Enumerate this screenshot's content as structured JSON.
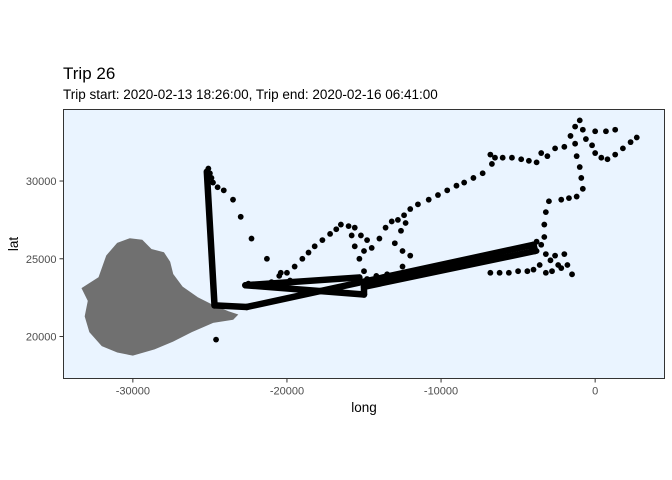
{
  "colors": {
    "panel_background": "#eaf4ff",
    "panel_border": "#333333",
    "points": "#000000",
    "land": "#707070"
  },
  "chart_data": {
    "type": "scatter",
    "title": "Trip 26",
    "subtitle": "Trip start: 2020-02-13 18:26:00, Trip end: 2020-02-16 06:41:00",
    "xlabel": "long",
    "ylabel": "lat",
    "xlim": [
      -34500,
      4500
    ],
    "ylim": [
      17300,
      34600
    ],
    "x_ticks": [
      -30000,
      -20000,
      -10000,
      0
    ],
    "x_tick_labels": [
      "-30000",
      "-20000",
      "-10000",
      "0"
    ],
    "y_ticks": [
      20000,
      25000,
      30000
    ],
    "y_tick_labels": [
      "20000",
      "25000",
      "30000"
    ],
    "grid": false,
    "legend": "none",
    "land_outline": [
      [
        -32200,
        23800
      ],
      [
        -31700,
        25200
      ],
      [
        -31000,
        26000
      ],
      [
        -30200,
        26300
      ],
      [
        -29400,
        26200
      ],
      [
        -28800,
        25600
      ],
      [
        -28000,
        25400
      ],
      [
        -27600,
        24800
      ],
      [
        -27400,
        24000
      ],
      [
        -26800,
        23200
      ],
      [
        -25800,
        22500
      ],
      [
        -24800,
        22000
      ],
      [
        -23800,
        21600
      ],
      [
        -23200,
        21400
      ],
      [
        -23500,
        21100
      ],
      [
        -24800,
        20900
      ],
      [
        -26200,
        20300
      ],
      [
        -27400,
        19700
      ],
      [
        -28600,
        19200
      ],
      [
        -30000,
        18800
      ],
      [
        -31000,
        19000
      ],
      [
        -32000,
        19400
      ],
      [
        -32800,
        20300
      ],
      [
        -33100,
        21300
      ],
      [
        -32900,
        22300
      ],
      [
        -33300,
        23100
      ]
    ],
    "series": [
      {
        "marker": "point",
        "points": [
          [
            -25100,
            30800
          ],
          [
            -25000,
            30500
          ],
          [
            -24900,
            30200
          ],
          [
            -24800,
            29900
          ],
          [
            -24500,
            29600
          ],
          [
            -24100,
            29400
          ],
          [
            -23500,
            28800
          ],
          [
            -23000,
            27700
          ],
          [
            -22300,
            26300
          ],
          [
            -21300,
            25000
          ],
          [
            -20400,
            24100
          ],
          [
            -19800,
            23600
          ],
          [
            -24600,
            19800
          ],
          [
            -22500,
            23400
          ],
          [
            -22000,
            23300
          ],
          [
            -21500,
            23200
          ],
          [
            -21000,
            23500
          ],
          [
            -20500,
            23900
          ],
          [
            -20000,
            24100
          ],
          [
            -19500,
            24500
          ],
          [
            -19000,
            25000
          ],
          [
            -18600,
            25400
          ],
          [
            -18200,
            25800
          ],
          [
            -17700,
            26200
          ],
          [
            -17200,
            26600
          ],
          [
            -16800,
            26900
          ],
          [
            -16500,
            27200
          ],
          [
            -16000,
            27100
          ],
          [
            -15600,
            27000
          ],
          [
            -15200,
            26500
          ],
          [
            -14800,
            26200
          ],
          [
            -15000,
            25500
          ],
          [
            -14500,
            25700
          ],
          [
            -14000,
            26300
          ],
          [
            -13600,
            27000
          ],
          [
            -13200,
            27400
          ],
          [
            -12800,
            27500
          ],
          [
            -12400,
            27800
          ],
          [
            -12300,
            27300
          ],
          [
            -12600,
            26800
          ],
          [
            -13000,
            26000
          ],
          [
            -12500,
            25500
          ],
          [
            -12000,
            25200
          ],
          [
            -12500,
            24500
          ],
          [
            -13500,
            24000
          ],
          [
            -14200,
            23900
          ],
          [
            -14800,
            23700
          ],
          [
            -15000,
            24200
          ],
          [
            -15300,
            25000
          ],
          [
            -15600,
            25800
          ],
          [
            -15800,
            26500
          ],
          [
            -12000,
            28200
          ],
          [
            -11500,
            28500
          ],
          [
            -10800,
            28800
          ],
          [
            -10200,
            29100
          ],
          [
            -9600,
            29400
          ],
          [
            -9000,
            29700
          ],
          [
            -8500,
            29900
          ],
          [
            -7900,
            30200
          ],
          [
            -7300,
            30500
          ],
          [
            -6700,
            31100
          ],
          [
            -6800,
            31700
          ],
          [
            -6500,
            31500
          ],
          [
            -6000,
            31500
          ],
          [
            -5400,
            31500
          ],
          [
            -4800,
            31400
          ],
          [
            -4300,
            31300
          ],
          [
            -3800,
            31200
          ],
          [
            -3500,
            31800
          ],
          [
            -3100,
            31600
          ],
          [
            -2600,
            32100
          ],
          [
            -2000,
            32200
          ],
          [
            -1600,
            32900
          ],
          [
            -1300,
            33500
          ],
          [
            -1000,
            33900
          ],
          [
            -800,
            33300
          ],
          [
            -600,
            32700
          ],
          [
            -200,
            32300
          ],
          [
            0,
            31800
          ],
          [
            400,
            31500
          ],
          [
            800,
            31400
          ],
          [
            1300,
            31700
          ],
          [
            1800,
            32100
          ],
          [
            2300,
            32500
          ],
          [
            2700,
            32800
          ],
          [
            0,
            33200
          ],
          [
            700,
            33200
          ],
          [
            1300,
            33300
          ],
          [
            -1300,
            32400
          ],
          [
            -1200,
            31600
          ],
          [
            -1000,
            30900
          ],
          [
            -900,
            30200
          ],
          [
            -800,
            29500
          ],
          [
            -1200,
            29000
          ],
          [
            -1700,
            28900
          ],
          [
            -2200,
            28800
          ],
          [
            -3000,
            28700
          ],
          [
            -3200,
            28000
          ],
          [
            -3300,
            27200
          ],
          [
            -3300,
            26400
          ],
          [
            -3500,
            25900
          ],
          [
            -3800,
            25500
          ],
          [
            -3200,
            25300
          ],
          [
            -2600,
            25200
          ],
          [
            -2000,
            25300
          ],
          [
            -2400,
            24600
          ],
          [
            -2800,
            24200
          ],
          [
            -3200,
            24100
          ],
          [
            -1800,
            24600
          ],
          [
            -1500,
            24000
          ],
          [
            -2200,
            24400
          ],
          [
            -2900,
            24900
          ],
          [
            -3600,
            24600
          ],
          [
            -4000,
            24300
          ],
          [
            -4400,
            24200
          ],
          [
            -5000,
            24200
          ],
          [
            -5600,
            24100
          ],
          [
            -6200,
            24100
          ],
          [
            -6800,
            24100
          ],
          [
            -4200,
            25800
          ],
          [
            -3800,
            26100
          ]
        ]
      },
      {
        "marker": "track",
        "points": [
          [
            -25200,
            30600
          ],
          [
            -24700,
            22000
          ],
          [
            -22600,
            21900
          ],
          [
            -4000,
            25900
          ],
          [
            -3900,
            25500
          ],
          [
            -15000,
            23200
          ],
          [
            -15000,
            22700
          ],
          [
            -22700,
            23300
          ],
          [
            -15300,
            23800
          ]
        ]
      }
    ]
  }
}
